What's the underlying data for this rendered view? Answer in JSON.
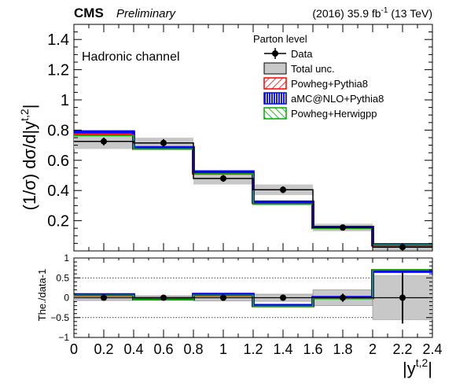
{
  "header": {
    "experiment": "CMS",
    "status": "Preliminary",
    "lumi_prefix": "(2016) 35.9 fb",
    "lumi_exp": "-1",
    "lumi_suffix": " (13 TeV)"
  },
  "channel_label": "Hadronic channel",
  "legend": {
    "title": "Parton level",
    "entries": [
      {
        "label": "Data",
        "color": "#000000",
        "style": "marker"
      },
      {
        "label": "Total unc.",
        "color": "#c8c8c8",
        "style": "box"
      },
      {
        "label": "Powheg+Pythia8",
        "color": "#ff0000",
        "style": "hatch-red"
      },
      {
        "label": "aMC@NLO+Pythia8",
        "color": "#0000ff",
        "style": "hatch-blue"
      },
      {
        "label": "Powheg+Herwigpp",
        "color": "#00aa00",
        "style": "hatch-green"
      }
    ]
  },
  "axes": {
    "ylabel_main": "(1/σ) dσ/d|y",
    "ylabel_main_sup": "t,2",
    "ylabel_main_end": "|",
    "ylabel_ratio": "The./data-1",
    "xlabel": "|y",
    "xlabel_sup": "t,2",
    "xlabel_end": "|",
    "x_ticks": [
      "0",
      "0.2",
      "0.4",
      "0.6",
      "0.8",
      "1",
      "1.2",
      "1.4",
      "1.6",
      "1.8",
      "2",
      "2.2",
      "2.4"
    ],
    "y_ticks_main": [
      "0.2",
      "0.4",
      "0.6",
      "0.8",
      "1",
      "1.2",
      "1.4"
    ],
    "y_ticks_ratio": [
      "1",
      "0.5",
      "0",
      "−0.5",
      "−1"
    ]
  },
  "chart_data": {
    "type": "bar",
    "bin_edges": [
      0,
      0.4,
      0.8,
      1.2,
      1.6,
      2.0,
      2.4
    ],
    "xlim": [
      0,
      2.4
    ],
    "ylim": [
      0,
      1.5
    ],
    "ratio_ylim": [
      -1,
      1
    ],
    "data": {
      "x": [
        0.2,
        0.6,
        1.0,
        1.4,
        1.8,
        2.2
      ],
      "y": [
        0.725,
        0.715,
        0.48,
        0.405,
        0.155,
        0.025
      ],
      "stat_err": [
        0.025,
        0.025,
        0.022,
        0.022,
        0.012,
        0.01
      ],
      "total_unc": [
        0.05,
        0.035,
        0.04,
        0.035,
        0.025,
        0.02
      ]
    },
    "series": [
      {
        "name": "Powheg+Pythia8",
        "color": "#ff0000",
        "values": [
          0.78,
          0.68,
          0.515,
          0.32,
          0.155,
          0.04
        ]
      },
      {
        "name": "aMC@NLO+Pythia8",
        "color": "#0000ff",
        "values": [
          0.79,
          0.685,
          0.525,
          0.325,
          0.157,
          0.042
        ]
      },
      {
        "name": "Powheg+Herwigpp",
        "color": "#00aa00",
        "values": [
          0.765,
          0.675,
          0.51,
          0.31,
          0.152,
          0.04
        ]
      }
    ],
    "ratio": {
      "data_total_unc": [
        0.07,
        0.05,
        0.08,
        0.09,
        0.2,
        0.55
      ],
      "data_stat_err": [
        0.03,
        0.03,
        0.05,
        0.05,
        0.1,
        0.65
      ],
      "series": [
        {
          "name": "Powheg+Pythia8",
          "values": [
            0.07,
            -0.03,
            0.07,
            -0.2,
            0.0,
            0.68
          ]
        },
        {
          "name": "aMC@NLO+Pythia8",
          "values": [
            0.08,
            -0.02,
            0.09,
            -0.19,
            0.01,
            0.66
          ]
        },
        {
          "name": "Powheg+Herwigpp",
          "values": [
            0.06,
            -0.04,
            0.06,
            -0.22,
            -0.02,
            0.7
          ]
        }
      ]
    }
  }
}
